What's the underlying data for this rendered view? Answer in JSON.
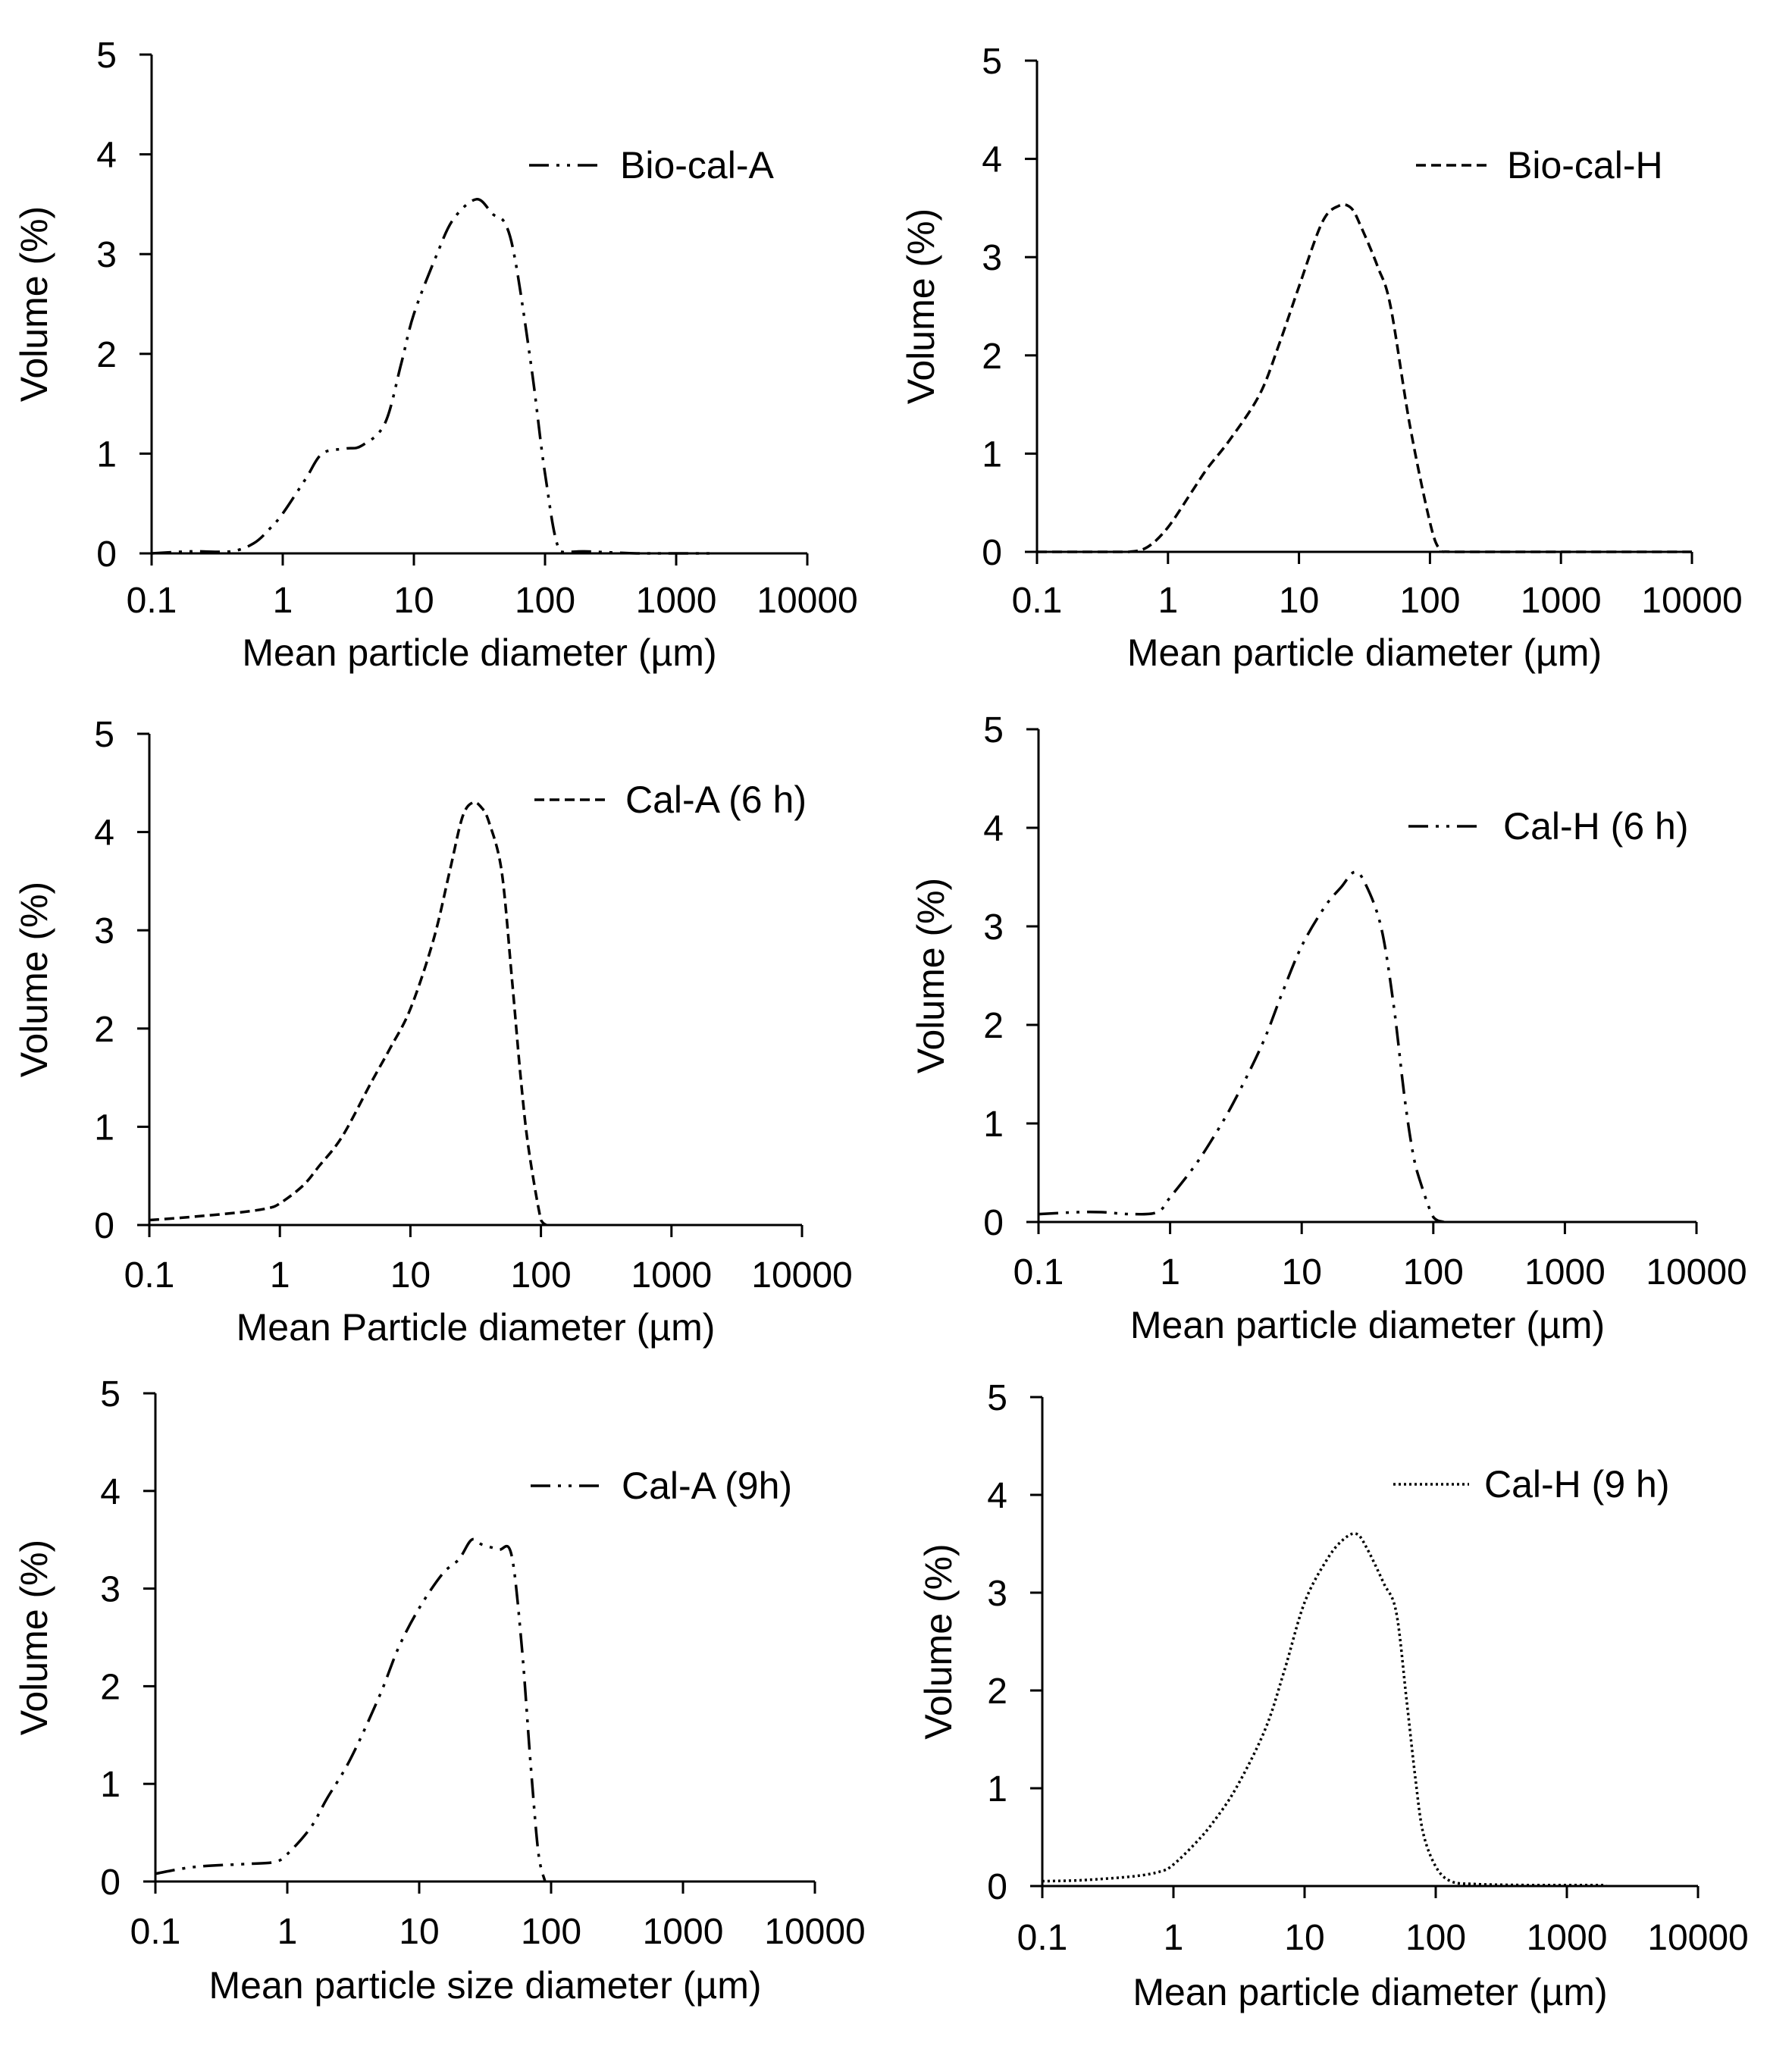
{
  "chart_data": [
    {
      "type": "line",
      "x_scale": "log",
      "xlabel": "Mean particle diameter (µm)",
      "ylabel": "Volume (%)",
      "xlim": [
        0.1,
        10000
      ],
      "ylim": [
        0,
        5
      ],
      "x_ticks": [
        "0.1",
        "1",
        "10",
        "100",
        "1000",
        "10000"
      ],
      "y_ticks": [
        "0",
        "1",
        "2",
        "3",
        "4",
        "5"
      ],
      "grid": false,
      "legend_position": "top-right",
      "series": [
        {
          "name": "Bio-cal-A",
          "line_style": "dash-dot-dot",
          "color": "#000000",
          "x": [
            0.1,
            0.2,
            0.4,
            0.6,
            0.8,
            1,
            1.5,
            2,
            3,
            4,
            6,
            8,
            10,
            15,
            20,
            30,
            40,
            50,
            60,
            80,
            100,
            130,
            200,
            500,
            1000,
            2000
          ],
          "y": [
            0,
            0.02,
            0.02,
            0.1,
            0.25,
            0.4,
            0.75,
            1.0,
            1.05,
            1.08,
            1.3,
            1.9,
            2.4,
            3.0,
            3.35,
            3.55,
            3.4,
            3.3,
            2.9,
            1.8,
            0.8,
            0.02,
            0.02,
            0,
            0,
            0
          ]
        }
      ]
    },
    {
      "type": "line",
      "x_scale": "log",
      "xlabel": "Mean particle diameter (µm)",
      "ylabel": "Volume (%)",
      "xlim": [
        0.1,
        10000
      ],
      "ylim": [
        0,
        5
      ],
      "x_ticks": [
        "0.1",
        "1",
        "10",
        "100",
        "1000",
        "10000"
      ],
      "y_ticks": [
        "0",
        "1",
        "2",
        "3",
        "4",
        "5"
      ],
      "grid": false,
      "legend_position": "top-right",
      "series": [
        {
          "name": "Bio-cal-H",
          "line_style": "dashed",
          "color": "#000000",
          "x": [
            0.1,
            0.3,
            0.5,
            0.7,
            1,
            1.5,
            2,
            3,
            5,
            7,
            10,
            15,
            20,
            25,
            30,
            40,
            50,
            70,
            100,
            120,
            150,
            1000,
            10000
          ],
          "y": [
            0,
            0,
            0,
            0.05,
            0.25,
            0.6,
            0.85,
            1.15,
            1.6,
            2.1,
            2.7,
            3.35,
            3.52,
            3.5,
            3.3,
            2.9,
            2.5,
            1.3,
            0.3,
            0.02,
            0,
            0,
            0
          ]
        }
      ]
    },
    {
      "type": "line",
      "x_scale": "log",
      "xlabel": "Mean Particle diameter (µm)",
      "ylabel": "Volume (%)",
      "xlim": [
        0.1,
        10000
      ],
      "ylim": [
        0,
        5
      ],
      "x_ticks": [
        "0.1",
        "1",
        "10",
        "100",
        "1000",
        "10000"
      ],
      "y_ticks": [
        "0",
        "1",
        "2",
        "3",
        "4",
        "5"
      ],
      "grid": false,
      "legend_position": "top-right",
      "series": [
        {
          "name": "Cal-A (6 h)",
          "line_style": "dashed",
          "color": "#000000",
          "x": [
            0.1,
            0.2,
            0.5,
            0.8,
            1,
            1.5,
            2,
            3,
            5,
            7,
            10,
            15,
            20,
            25,
            30,
            35,
            40,
            50,
            60,
            70,
            80,
            100,
            110
          ],
          "y": [
            0.05,
            0.08,
            0.13,
            0.17,
            0.22,
            0.4,
            0.6,
            0.9,
            1.45,
            1.8,
            2.2,
            2.9,
            3.6,
            4.15,
            4.3,
            4.25,
            4.1,
            3.6,
            2.5,
            1.5,
            0.8,
            0.05,
            0
          ]
        }
      ]
    },
    {
      "type": "line",
      "x_scale": "log",
      "xlabel": "Mean particle diameter (µm)",
      "ylabel": "Volume (%)",
      "xlim": [
        0.1,
        10000
      ],
      "ylim": [
        0,
        5
      ],
      "x_ticks": [
        "0.1",
        "1",
        "10",
        "100",
        "1000",
        "10000"
      ],
      "y_ticks": [
        "0",
        "1",
        "2",
        "3",
        "4",
        "5"
      ],
      "grid": false,
      "legend_position": "top-right",
      "series": [
        {
          "name": "Cal-H (6 h)",
          "line_style": "dash-dot-dot",
          "color": "#000000",
          "x": [
            0.1,
            0.2,
            0.3,
            0.5,
            0.8,
            1,
            1.5,
            2,
            3,
            5,
            7,
            10,
            15,
            20,
            25,
            30,
            40,
            50,
            60,
            70,
            80,
            100,
            120
          ],
          "y": [
            0.08,
            0.1,
            0.1,
            0.08,
            0.1,
            0.25,
            0.55,
            0.8,
            1.2,
            1.8,
            2.3,
            2.8,
            3.2,
            3.4,
            3.55,
            3.45,
            3.0,
            2.2,
            1.3,
            0.7,
            0.4,
            0.05,
            0
          ]
        }
      ]
    },
    {
      "type": "line",
      "x_scale": "log",
      "xlabel": "Mean particle size diameter (µm)",
      "ylabel": "Volume (%)",
      "xlim": [
        0.1,
        10000
      ],
      "ylim": [
        0,
        5
      ],
      "x_ticks": [
        "0.1",
        "1",
        "10",
        "100",
        "1000",
        "10000"
      ],
      "y_ticks": [
        "0",
        "1",
        "2",
        "3",
        "4",
        "5"
      ],
      "grid": false,
      "legend_position": "top-right",
      "series": [
        {
          "name": "Cal-A (9h)",
          "line_style": "dash-dot-dot",
          "color": "#000000",
          "x": [
            0.1,
            0.2,
            0.5,
            0.8,
            1,
            1.5,
            2,
            3,
            5,
            7,
            10,
            15,
            20,
            25,
            30,
            40,
            50,
            60,
            70,
            80,
            90
          ],
          "y": [
            0.08,
            0.15,
            0.18,
            0.2,
            0.28,
            0.55,
            0.85,
            1.25,
            1.9,
            2.4,
            2.8,
            3.15,
            3.3,
            3.5,
            3.45,
            3.4,
            3.35,
            2.4,
            1.2,
            0.3,
            0
          ]
        }
      ]
    },
    {
      "type": "line",
      "x_scale": "log",
      "xlabel": "Mean particle diameter (µm)",
      "ylabel": "Volume (%)",
      "xlim": [
        0.1,
        10000
      ],
      "ylim": [
        0,
        5
      ],
      "x_ticks": [
        "0.1",
        "1",
        "10",
        "100",
        "1000",
        "10000"
      ],
      "y_ticks": [
        "0",
        "1",
        "2",
        "3",
        "4",
        "5"
      ],
      "grid": false,
      "legend_position": "top-right",
      "series": [
        {
          "name": "Cal-H (9 h)",
          "line_style": "dotted",
          "color": "#000000",
          "x": [
            0.1,
            0.2,
            0.5,
            0.8,
            1,
            1.5,
            2,
            3,
            5,
            7,
            10,
            15,
            20,
            25,
            30,
            40,
            50,
            60,
            70,
            80,
            100,
            130,
            200,
            500,
            1000,
            2000
          ],
          "y": [
            0.05,
            0.06,
            0.1,
            0.15,
            0.22,
            0.45,
            0.65,
            1.0,
            1.6,
            2.2,
            2.9,
            3.35,
            3.55,
            3.6,
            3.45,
            3.1,
            2.8,
            1.9,
            1.1,
            0.55,
            0.2,
            0.05,
            0.02,
            0.01,
            0.01,
            0.01
          ]
        }
      ]
    }
  ]
}
